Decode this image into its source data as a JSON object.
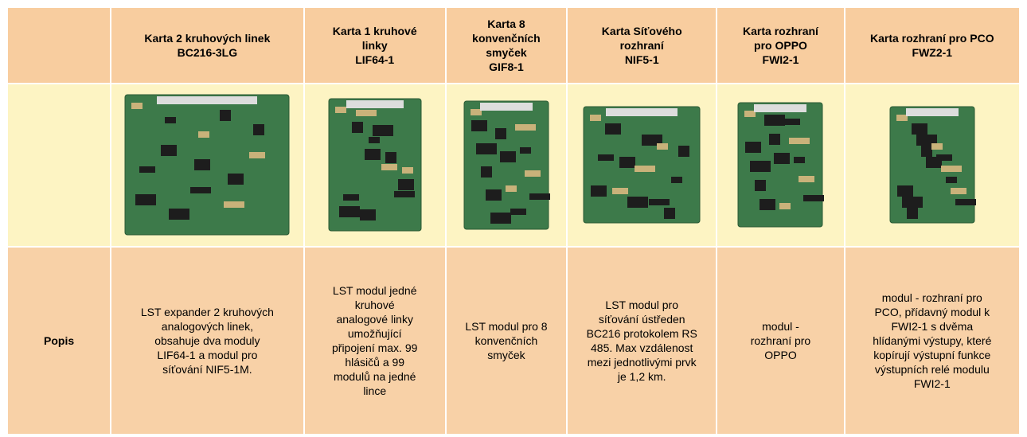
{
  "table": {
    "row_label": "Popis",
    "columns": [
      {
        "header": [
          "Karta 2 kruhových linek",
          "BC216-3LG"
        ],
        "description": [
          "LST expander 2 kruhových",
          "analogových linek,",
          "obsahuje dva moduly",
          "LIF64-1 a  modul pro",
          "síťování NIF5-1M."
        ]
      },
      {
        "header": [
          "Karta 1 kruhové",
          "linky",
          "LIF64-1"
        ],
        "description": [
          "LST modul jedné",
          "kruhové",
          "analogové linky",
          "umožňující",
          "připojení max. 99",
          "hlásičů a 99",
          "modulů na jedné",
          "lince"
        ]
      },
      {
        "header": [
          "Karta 8",
          "konvenčních",
          "smyček",
          "GIF8-1"
        ],
        "description": [
          "LST modul pro 8",
          "konvenčních",
          "smyček"
        ]
      },
      {
        "header": [
          "Karta Síťového",
          "rozhraní",
          "NIF5-1"
        ],
        "description": [
          "LST modul pro",
          "síťování ústředen",
          "BC216 protokolem RS",
          "485. Max vzdálenost",
          "mezi jednotlivými prvk",
          "je 1,2 km."
        ]
      },
      {
        "header": [
          "Karta rozhraní",
          "pro OPPO",
          "FWI2-1"
        ],
        "description": [
          "modul -",
          "rozhraní pro",
          "OPPO"
        ]
      },
      {
        "header": [
          "Karta rozhraní pro PCO",
          "FWZ2-1"
        ],
        "description": [
          "modul - rozhraní pro",
          "PCO, přídavný modul k",
          "FWI2-1 s dvěma",
          "hlídanými výstupy, které",
          "kopírují výstupní funkce",
          "výstupních relé modulu",
          "FWI2-1"
        ]
      }
    ]
  }
}
